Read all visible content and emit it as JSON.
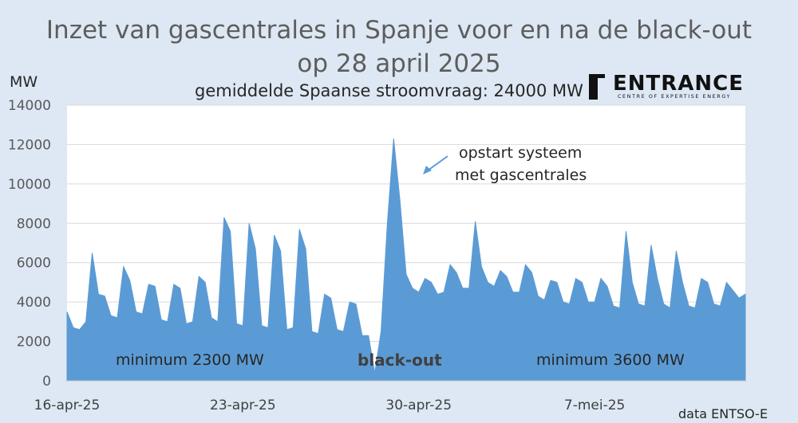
{
  "chart_data": {
    "type": "area",
    "title_line1": "Inzet van gascentrales in Spanje voor en na de black-out",
    "title_line2": "op 28 april 2025",
    "subtitle": "gemiddelde Spaanse stroomvraag: 24000 MW",
    "ylabel": "MW",
    "ylim": [
      0,
      14000
    ],
    "yticks": [
      0,
      2000,
      4000,
      6000,
      8000,
      10000,
      12000,
      14000
    ],
    "yticklabels": [
      "0",
      "2000",
      "4000",
      "6000",
      "8000",
      "10000",
      "12000",
      "14000"
    ],
    "xlim": [
      "2025-04-16",
      "2025-05-13"
    ],
    "xticks": [
      {
        "date": "2025-04-16",
        "label": "16-apr-25"
      },
      {
        "date": "2025-04-23",
        "label": "23-apr-25"
      },
      {
        "date": "2025-04-30",
        "label": "30-apr-25"
      },
      {
        "date": "2025-05-07",
        "label": "7-mei-25"
      }
    ],
    "grid": true,
    "color": "#5b9bd5",
    "series": [
      {
        "name": "",
        "x": [
          "2025-04-16 00:00",
          "2025-04-16 06:00",
          "2025-04-16 12:00",
          "2025-04-16 18:00",
          "2025-04-17 00:00",
          "2025-04-17 06:00",
          "2025-04-17 12:00",
          "2025-04-17 18:00",
          "2025-04-18 00:00",
          "2025-04-18 06:00",
          "2025-04-18 12:00",
          "2025-04-18 18:00",
          "2025-04-19 00:00",
          "2025-04-19 06:00",
          "2025-04-19 12:00",
          "2025-04-19 18:00",
          "2025-04-20 00:00",
          "2025-04-20 06:00",
          "2025-04-20 12:00",
          "2025-04-20 18:00",
          "2025-04-21 00:00",
          "2025-04-21 06:00",
          "2025-04-21 12:00",
          "2025-04-21 18:00",
          "2025-04-22 00:00",
          "2025-04-22 06:00",
          "2025-04-22 12:00",
          "2025-04-22 18:00",
          "2025-04-23 00:00",
          "2025-04-23 06:00",
          "2025-04-23 12:00",
          "2025-04-23 18:00",
          "2025-04-24 00:00",
          "2025-04-24 06:00",
          "2025-04-24 12:00",
          "2025-04-24 18:00",
          "2025-04-25 00:00",
          "2025-04-25 06:00",
          "2025-04-25 12:00",
          "2025-04-25 18:00",
          "2025-04-26 00:00",
          "2025-04-26 06:00",
          "2025-04-26 12:00",
          "2025-04-26 18:00",
          "2025-04-27 00:00",
          "2025-04-27 06:00",
          "2025-04-27 12:00",
          "2025-04-27 18:00",
          "2025-04-28 00:00",
          "2025-04-28 06:00",
          "2025-04-28 12:00",
          "2025-04-28 18:00",
          "2025-04-29 00:00",
          "2025-04-29 06:00",
          "2025-04-29 12:00",
          "2025-04-29 18:00",
          "2025-04-30 00:00",
          "2025-04-30 06:00",
          "2025-04-30 12:00",
          "2025-04-30 18:00",
          "2025-05-01 00:00",
          "2025-05-01 06:00",
          "2025-05-01 12:00",
          "2025-05-01 18:00",
          "2025-05-02 00:00",
          "2025-05-02 06:00",
          "2025-05-02 12:00",
          "2025-05-02 18:00",
          "2025-05-03 00:00",
          "2025-05-03 06:00",
          "2025-05-03 12:00",
          "2025-05-03 18:00",
          "2025-05-04 00:00",
          "2025-05-04 06:00",
          "2025-05-04 12:00",
          "2025-05-04 18:00",
          "2025-05-05 00:00",
          "2025-05-05 06:00",
          "2025-05-05 12:00",
          "2025-05-05 18:00",
          "2025-05-06 00:00",
          "2025-05-06 06:00",
          "2025-05-06 12:00",
          "2025-05-06 18:00",
          "2025-05-07 00:00",
          "2025-05-07 06:00",
          "2025-05-07 12:00",
          "2025-05-07 18:00",
          "2025-05-08 00:00",
          "2025-05-08 06:00",
          "2025-05-08 12:00",
          "2025-05-08 18:00",
          "2025-05-09 00:00",
          "2025-05-09 06:00",
          "2025-05-09 12:00",
          "2025-05-09 18:00",
          "2025-05-10 00:00",
          "2025-05-10 06:00",
          "2025-05-10 12:00",
          "2025-05-10 18:00",
          "2025-05-11 00:00",
          "2025-05-11 06:00",
          "2025-05-11 12:00",
          "2025-05-11 18:00",
          "2025-05-12 00:00",
          "2025-05-12 06:00",
          "2025-05-12 12:00",
          "2025-05-12 18:00",
          "2025-05-13 00:00"
        ],
        "values": [
          3500,
          2700,
          2600,
          3000,
          6500,
          4400,
          4300,
          3300,
          3200,
          5800,
          5100,
          3500,
          3400,
          4900,
          4800,
          3100,
          3000,
          4900,
          4700,
          2900,
          3000,
          5300,
          5000,
          3200,
          3000,
          8300,
          7600,
          2900,
          2800,
          8000,
          6700,
          2800,
          2700,
          7400,
          6600,
          2600,
          2700,
          7700,
          6700,
          2500,
          2400,
          4400,
          4200,
          2600,
          2500,
          4000,
          3900,
          2300,
          2300,
          400,
          2500,
          8000,
          12300,
          9200,
          5400,
          4700,
          4500,
          5200,
          5000,
          4400,
          4500,
          5900,
          5500,
          4700,
          4700,
          8100,
          5800,
          5000,
          4800,
          5600,
          5300,
          4500,
          4500,
          5900,
          5500,
          4300,
          4100,
          5100,
          5000,
          4000,
          3900,
          5200,
          5000,
          4000,
          4000,
          5200,
          4800,
          3800,
          3700,
          7600,
          5000,
          3900,
          3800,
          6900,
          5200,
          3900,
          3700,
          6600,
          5000,
          3800,
          3700,
          5200,
          5000,
          3900,
          3800,
          5000,
          4600,
          4200,
          4400
        ]
      }
    ],
    "annotations": {
      "min_before": "minimum 2300 MW",
      "blackout": "black-out",
      "min_after": "minimum 3600 MW",
      "restart_line1": "opstart systeem",
      "restart_line2": "met gascentrales"
    }
  },
  "logo": {
    "name": "ENTRANCE",
    "tagline": "CENTRE OF EXPERTISE ENERGY"
  },
  "source": "data ENTSO-E"
}
